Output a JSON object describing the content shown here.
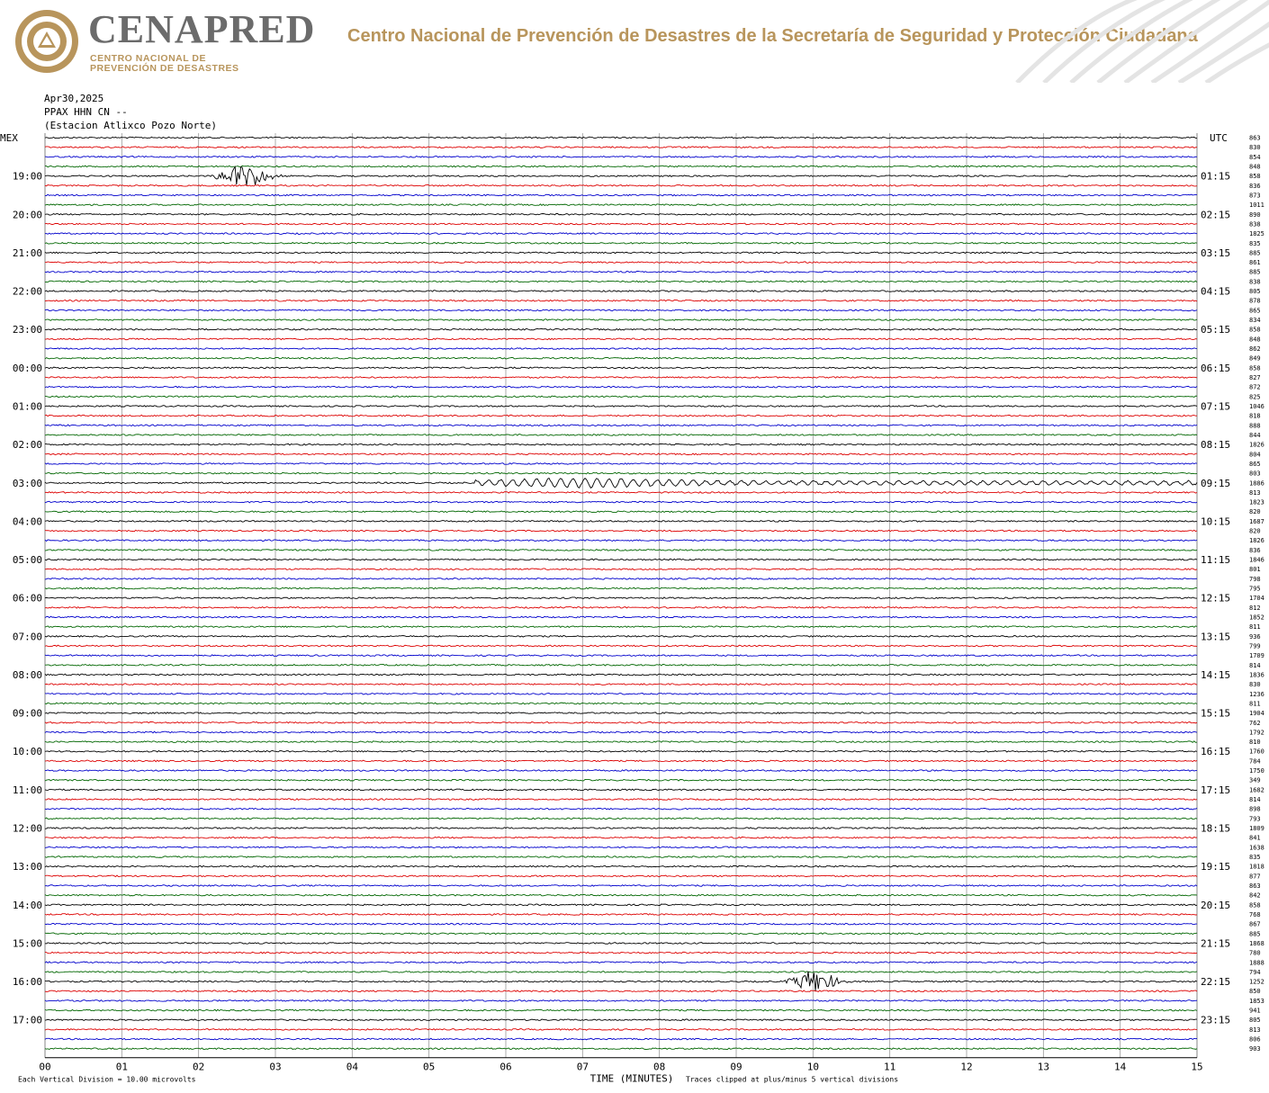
{
  "header": {
    "brand": "CENAPRED",
    "brand_sub1": "CENTRO NACIONAL DE",
    "brand_sub2": "PREVENCIÓN DE DESASTRES",
    "title": "Centro Nacional de Prevención de Desastres de la Secretaría de Seguridad y Protección Ciudadana"
  },
  "colors": {
    "accent_gold": "#b8955c",
    "brand_gray": "#6b6b6b",
    "trace_colors": [
      "#000000",
      "#dd0000",
      "#0000cc",
      "#006600"
    ],
    "grid": "#9a9a9a"
  },
  "chart_data": {
    "type": "line",
    "info_lines": [
      "Apr30,2025",
      "PPAX HHN CN --",
      "(Estacion Atlixco Pozo Norte)"
    ],
    "left_axis_title": "MEX",
    "right_axis_title": "UTC",
    "left_labels": [
      "19:00",
      "20:00",
      "21:00",
      "22:00",
      "23:00",
      "00:00",
      "01:00",
      "02:00",
      "03:00",
      "04:00",
      "05:00",
      "06:00",
      "07:00",
      "08:00",
      "09:00",
      "10:00",
      "11:00",
      "12:00",
      "13:00",
      "14:00",
      "15:00",
      "16:00",
      "17:00"
    ],
    "right_labels": [
      "01:15",
      "02:15",
      "03:15",
      "04:15",
      "05:15",
      "06:15",
      "07:15",
      "08:15",
      "09:15",
      "10:15",
      "11:15",
      "12:15",
      "13:15",
      "14:15",
      "15:15",
      "16:15",
      "17:15",
      "18:15",
      "19:15",
      "20:15",
      "21:15",
      "22:15",
      "23:15"
    ],
    "first_label_row": 4,
    "rows_per_hour": 4,
    "x_ticks": [
      "00",
      "01",
      "02",
      "03",
      "04",
      "05",
      "06",
      "07",
      "08",
      "09",
      "10",
      "11",
      "12",
      "13",
      "14",
      "15"
    ],
    "xlim": [
      0,
      15
    ],
    "xlabel": "TIME (MINUTES)",
    "footnote_left": "Each Vertical Division =   10.00 microvolts",
    "footnote_right": "Traces clipped at plus/minus 5 vertical divisions",
    "row_values": [
      "863",
      "830",
      "854",
      "848",
      "858",
      "836",
      "873",
      "1011",
      "890",
      "838",
      "1825",
      "835",
      "885",
      "861",
      "885",
      "838",
      "805",
      "878",
      "865",
      "834",
      "858",
      "848",
      "862",
      "849",
      "858",
      "827",
      "872",
      "825",
      "1046",
      "818",
      "888",
      "844",
      "1826",
      "804",
      "865",
      "803",
      "1886",
      "813",
      "1823",
      "820",
      "1687",
      "820",
      "1826",
      "836",
      "1846",
      "801",
      "798",
      "795",
      "1704",
      "812",
      "1852",
      "811",
      "936",
      "799",
      "1709",
      "814",
      "1836",
      "830",
      "1236",
      "811",
      "1904",
      "762",
      "1792",
      "810",
      "1760",
      "784",
      "1750",
      "349",
      "1682",
      "814",
      "898",
      "793",
      "1809",
      "841",
      "1638",
      "835",
      "1818",
      "877",
      "863",
      "842",
      "858",
      "768",
      "867",
      "885",
      "1868",
      "780",
      "1888",
      "794",
      "1252",
      "850",
      "1853",
      "941",
      "805",
      "813",
      "806",
      "903"
    ],
    "events": [
      {
        "row": 4,
        "start_min": 2.1,
        "end_min": 3.5,
        "amplitude": "large",
        "type": "burst"
      },
      {
        "row": 36,
        "start_min": 5.6,
        "end_min": 15.0,
        "amplitude": "medium",
        "type": "wave"
      },
      {
        "row": 88,
        "start_min": 9.6,
        "end_min": 10.8,
        "amplitude": "large",
        "type": "burst"
      }
    ]
  }
}
